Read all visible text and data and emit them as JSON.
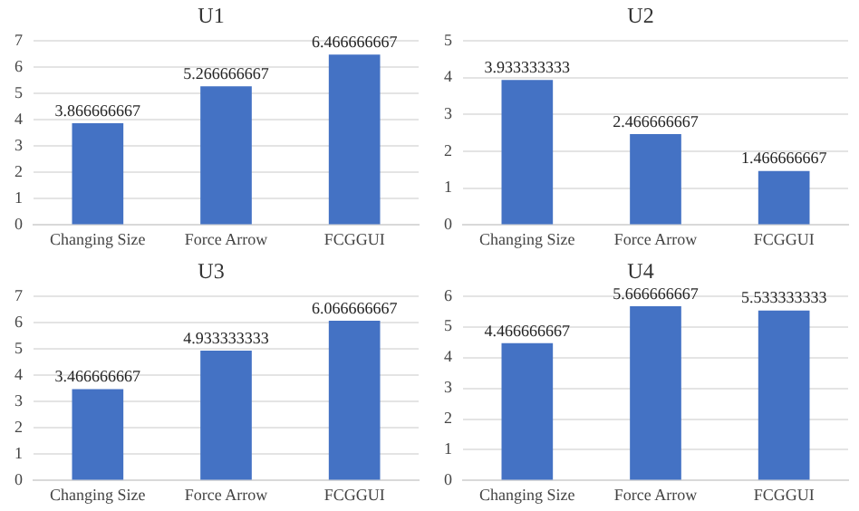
{
  "chart_data": [
    {
      "type": "bar",
      "title": "U1",
      "categories": [
        "Changing Size",
        "Force Arrow",
        "FCGGUI"
      ],
      "values": [
        3.866666667,
        5.266666667,
        6.466666667
      ],
      "color": "#4472c4",
      "ylim": [
        0,
        7
      ],
      "yticks": [
        0,
        1,
        2,
        3,
        4,
        5,
        6,
        7
      ],
      "grid": "y",
      "data_labels": true
    },
    {
      "type": "bar",
      "title": "U2",
      "categories": [
        "Changing Size",
        "Force Arrow",
        "FCGGUI"
      ],
      "values": [
        3.933333333,
        2.466666667,
        1.466666667
      ],
      "color": "#4472c4",
      "ylim": [
        0,
        5
      ],
      "yticks": [
        0,
        1,
        2,
        3,
        4,
        5
      ],
      "grid": "y",
      "data_labels": true
    },
    {
      "type": "bar",
      "title": "U3",
      "categories": [
        "Changing Size",
        "Force Arrow",
        "FCGGUI"
      ],
      "values": [
        3.466666667,
        4.933333333,
        6.066666667
      ],
      "color": "#4472c4",
      "ylim": [
        0,
        7
      ],
      "yticks": [
        0,
        1,
        2,
        3,
        4,
        5,
        6,
        7
      ],
      "grid": "y",
      "data_labels": true
    },
    {
      "type": "bar",
      "title": "U4",
      "categories": [
        "Changing Size",
        "Force Arrow",
        "FCGGUI"
      ],
      "values": [
        4.466666667,
        5.666666667,
        5.533333333
      ],
      "color": "#4472c4",
      "ylim": [
        0,
        6
      ],
      "yticks": [
        0,
        1,
        2,
        3,
        4,
        5,
        6
      ],
      "grid": "y",
      "data_labels": true
    }
  ]
}
